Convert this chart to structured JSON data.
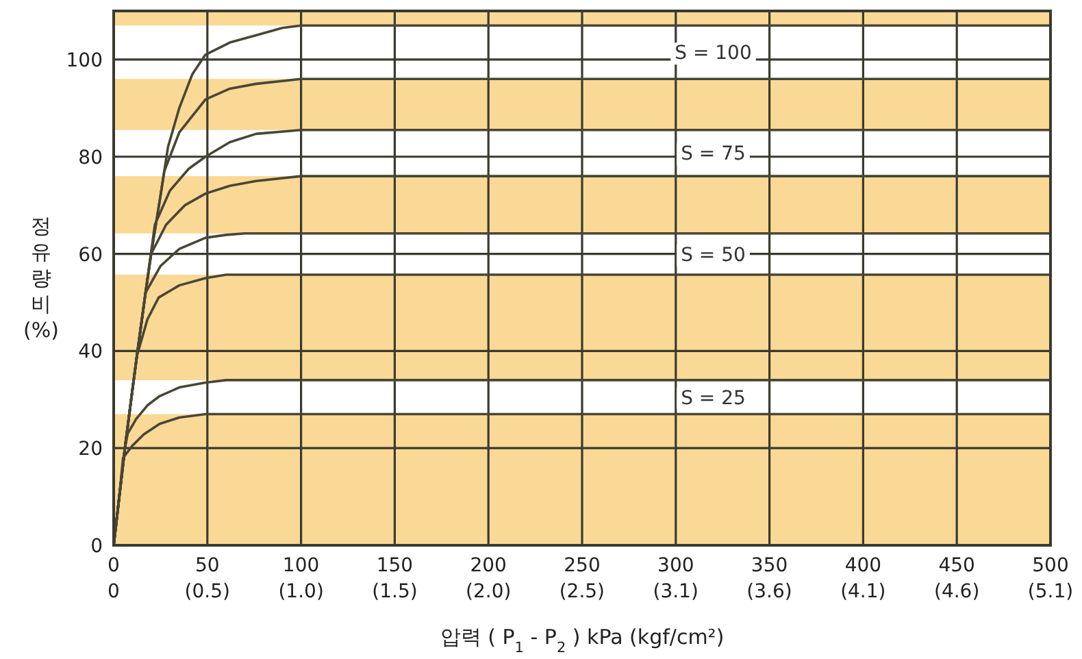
{
  "chart_data": {
    "type": "line",
    "xlabel": "압력 ( P$_{1}$ - P$_{2}$ ) kPa (kgf/cm²)",
    "ylabel": "정유량비 (%)",
    "xlim": [
      0,
      500
    ],
    "ylim": [
      0,
      110
    ],
    "xticks": [
      0,
      50,
      100,
      150,
      200,
      250,
      300,
      350,
      400,
      450,
      500
    ],
    "x2lim": [
      0,
      5.099
    ],
    "x2ticks": [
      0,
      {
        "value": 0.51,
        "label": "(0.5)"
      },
      {
        "value": 1.02,
        "label": "(1.0)"
      },
      {
        "value": 1.53,
        "label": "(1.5)"
      },
      {
        "value": 2.04,
        "label": "(2.0)"
      },
      {
        "value": 2.549,
        "label": "(2.5)"
      },
      {
        "value": 3.059,
        "label": "(3.1)"
      },
      {
        "value": 3.569,
        "label": "(3.6)"
      },
      {
        "value": 4.079,
        "label": "(4.1)"
      },
      {
        "value": 4.589,
        "label": "(4.6)"
      },
      {
        "value": 5.099,
        "label": "(5.1)"
      }
    ],
    "yticks": [
      0,
      20,
      40,
      60,
      80,
      100
    ],
    "grid": true,
    "marker": "none",
    "line_style": "solid",
    "series": [
      {
        "color": "#4a4636",
        "x": [
          0,
          3,
          6,
          10,
          12.4,
          17,
          20,
          25,
          29,
          35,
          42,
          49,
          62,
          76,
          90,
          100,
          500
        ],
        "values": [
          0,
          10,
          20,
          32,
          39,
          52,
          60,
          72,
          82,
          90,
          97,
          101,
          103.5,
          105,
          106.5,
          107,
          107
        ]
      },
      {
        "color": "#4a4636",
        "x": [
          0,
          3,
          6,
          10,
          12.4,
          17,
          20,
          25,
          27,
          35,
          49,
          62,
          76,
          100,
          500
        ],
        "values": [
          0,
          10,
          20,
          32,
          39,
          52,
          60,
          72,
          77,
          85,
          91.8,
          94,
          95,
          96,
          96
        ]
      },
      {
        "color": "#4a4636",
        "x": [
          0,
          3,
          6,
          10,
          12.4,
          17,
          22,
          30,
          40,
          49,
          62,
          76,
          100,
          500
        ],
        "values": [
          0,
          10,
          20,
          32,
          39,
          52,
          66,
          73,
          77.5,
          80,
          83,
          84.7,
          85.5,
          85.5
        ]
      },
      {
        "color": "#4a4636",
        "x": [
          0,
          3,
          6,
          10,
          12.4,
          17,
          20,
          28,
          38,
          49,
          62,
          76,
          100,
          500
        ],
        "values": [
          0,
          10,
          20,
          32,
          39,
          52,
          60,
          66,
          70,
          72.4,
          74,
          75,
          76,
          76
        ]
      },
      {
        "color": "#4a4636",
        "x": [
          0,
          3,
          6,
          10,
          12.4,
          17,
          25,
          35,
          49,
          60,
          70,
          500
        ],
        "values": [
          0,
          10,
          20,
          32,
          39,
          52,
          57.5,
          61,
          63.3,
          63.9,
          64.2,
          64.2
        ]
      },
      {
        "color": "#4a4636",
        "x": [
          0,
          3,
          6,
          10,
          12.4,
          18,
          24,
          35,
          49,
          60,
          500
        ],
        "values": [
          0,
          10,
          20,
          32,
          39,
          46.5,
          51,
          53.5,
          55,
          55.7,
          55.7
        ]
      },
      {
        "color": "#4a4636",
        "x": [
          0,
          3,
          6,
          7.5,
          12,
          18,
          24.5,
          35,
          49,
          60,
          500
        ],
        "values": [
          0,
          10,
          20,
          23,
          26,
          28.8,
          30.7,
          32.5,
          33.5,
          34,
          34
        ]
      },
      {
        "color": "#4a4636",
        "x": [
          0,
          3,
          5,
          10,
          16,
          24.5,
          35,
          49,
          500
        ],
        "values": [
          0,
          10,
          18,
          20.5,
          22.8,
          25,
          26.3,
          27,
          27
        ]
      }
    ],
    "bands": [
      {
        "axis": "y",
        "from": 96,
        "to": 107,
        "color": "#ffffff",
        "label": "S = 100"
      },
      {
        "axis": "y",
        "from": 76,
        "to": 85.5,
        "color": "#ffffff",
        "label": "S = 75"
      },
      {
        "axis": "y",
        "from": 55.7,
        "to": 64.2,
        "color": "#ffffff",
        "label": "S = 50"
      },
      {
        "axis": "y",
        "from": 27,
        "to": 34,
        "color": "#ffffff",
        "label": "S = 25"
      }
    ]
  }
}
